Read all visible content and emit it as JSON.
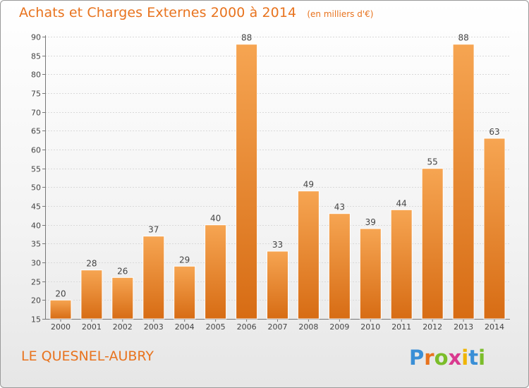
{
  "chart_data": {
    "type": "bar",
    "title": "Achats et Charges Externes 2000 à 2014",
    "subtitle": "(en milliers d'€)",
    "xlabel": "",
    "ylabel": "",
    "categories": [
      "2000",
      "2001",
      "2002",
      "2003",
      "2004",
      "2005",
      "2006",
      "2007",
      "2008",
      "2009",
      "2010",
      "2011",
      "2012",
      "2013",
      "2014"
    ],
    "values": [
      20,
      28,
      26,
      37,
      29,
      40,
      88,
      33,
      49,
      43,
      39,
      44,
      55,
      88,
      63
    ],
    "ylim": [
      15,
      90
    ],
    "yticks": [
      15,
      20,
      25,
      30,
      35,
      40,
      45,
      50,
      55,
      60,
      65,
      70,
      75,
      80,
      85,
      90
    ],
    "grid": true,
    "bar_color": "#f08d32",
    "title_color": "#e8731e"
  },
  "footer": {
    "place": "LE QUESNEL-AUBRY",
    "logo_text": "Proxiti"
  }
}
